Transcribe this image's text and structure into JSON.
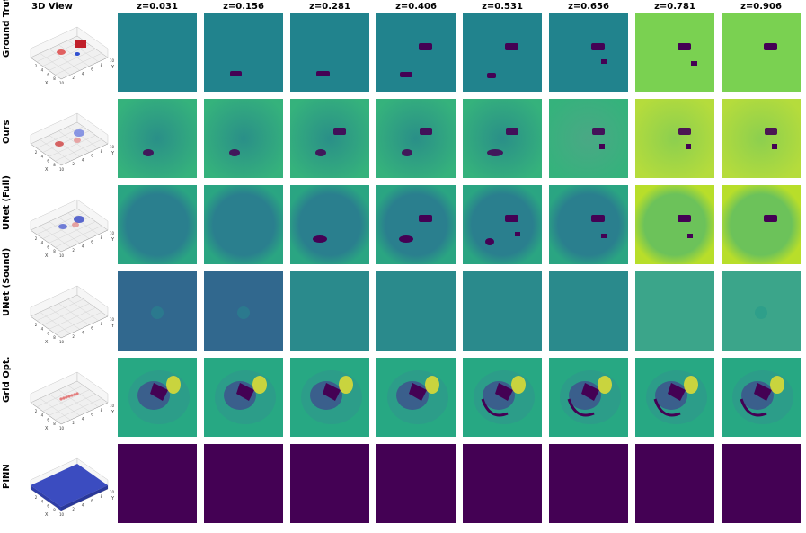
{
  "header": {
    "view_title": "3D View",
    "slices": [
      "z=0.031",
      "z=0.156",
      "z=0.281",
      "z=0.406",
      "z=0.531",
      "z=0.656",
      "z=0.781",
      "z=0.906"
    ]
  },
  "rows": [
    {
      "label": "Ground Truth"
    },
    {
      "label": "Ours"
    },
    {
      "label": "UNet (Full)"
    },
    {
      "label": "UNet (Sound)"
    },
    {
      "label": "Grid Opt."
    },
    {
      "label": "PINN"
    }
  ],
  "colors": {
    "viridis_dark": "#440154",
    "viridis_teal": "#21838d",
    "viridis_green": "#2db27d",
    "viridis_light": "#7ad151",
    "viridis_yellow": "#fde725",
    "pinn_blue": "#3b4cc0",
    "red_blob": "#d62728"
  },
  "axes3d": {
    "x_label": "X",
    "y_label": "Y",
    "z_ticks": [
      "0",
      "2",
      "4",
      "6",
      "8",
      "10"
    ],
    "x_ticks": [
      "0",
      "2",
      "4",
      "6",
      "8",
      "10"
    ],
    "y_ticks": [
      "0",
      "2",
      "4",
      "6",
      "8",
      "10"
    ]
  }
}
